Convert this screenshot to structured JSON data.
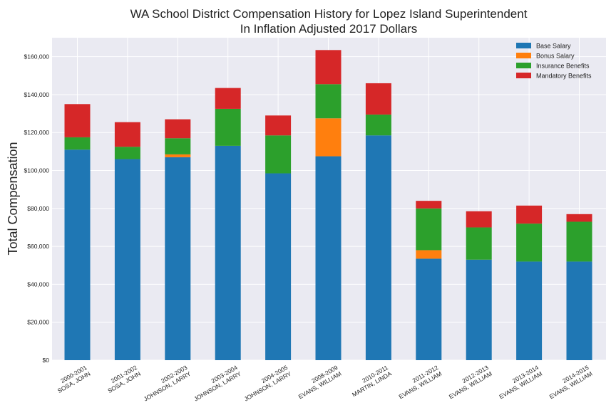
{
  "chart_data": {
    "type": "bar",
    "stacked": true,
    "title": "WA School District Compensation History for Lopez Island Superintendent",
    "subtitle": "In Inflation Adjusted 2017 Dollars",
    "xlabel": "",
    "ylabel": "Total Compensation",
    "ylim": [
      0,
      170000
    ],
    "yticks": [
      "$0",
      "$20,000",
      "$40,000",
      "$60,000",
      "$80,000",
      "$100,000",
      "$120,000",
      "$140,000",
      "$160,000"
    ],
    "grid": true,
    "legend_position": "top-right",
    "categories": [
      [
        "2000-2001",
        "SOSA, JOHN"
      ],
      [
        "2001-2002",
        "SOSA, JOHN"
      ],
      [
        "2002-2003",
        "JOHNSON, LARRY"
      ],
      [
        "2003-2004",
        "JOHNSON, LARRY"
      ],
      [
        "2004-2005",
        "JOHNSON, LARRY"
      ],
      [
        "2008-2009",
        "EVANS, WILLIAM"
      ],
      [
        "2010-2011",
        "MARTIN, LINDA"
      ],
      [
        "2011-2012",
        "EVANS, WILLIAM"
      ],
      [
        "2012-2013",
        "EVANS, WILLIAM"
      ],
      [
        "2013-2014",
        "EVANS, WILLIAM"
      ],
      [
        "2014-2015",
        "EVANS, WILLIAM"
      ]
    ],
    "series": [
      {
        "name": "Base Salary",
        "color": "#1f77b4",
        "values": [
          111000,
          106000,
          107000,
          113000,
          98500,
          107500,
          118500,
          53500,
          53000,
          52000,
          52000
        ]
      },
      {
        "name": "Bonus Salary",
        "color": "#ff7f0e",
        "values": [
          0,
          0,
          1500,
          0,
          0,
          20000,
          0,
          4500,
          0,
          0,
          0
        ]
      },
      {
        "name": "Insurance Benefits",
        "color": "#2ca02c",
        "values": [
          6500,
          6500,
          8500,
          19500,
          20000,
          18000,
          11000,
          22000,
          17000,
          20000,
          21000
        ]
      },
      {
        "name": "Mandatory Benefits",
        "color": "#d62728",
        "values": [
          17500,
          13000,
          10000,
          11000,
          10500,
          18000,
          16500,
          4000,
          8500,
          9500,
          4000
        ]
      }
    ]
  }
}
